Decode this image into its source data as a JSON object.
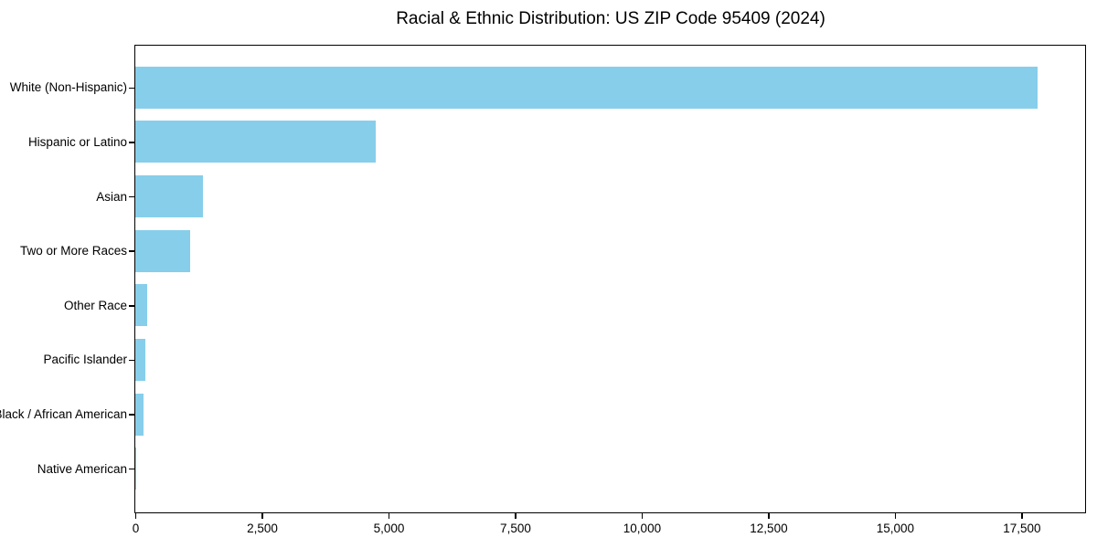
{
  "chart_data": {
    "type": "bar",
    "orientation": "horizontal",
    "title": "Racial & Ethnic Distribution: US ZIP Code 95409 (2024)",
    "categories": [
      "White (Non-Hispanic)",
      "Hispanic or Latino",
      "Asian",
      "Two or More Races",
      "Other Race",
      "Pacific Islander",
      "Black / African American",
      "Native American"
    ],
    "values": [
      17820,
      4750,
      1340,
      1085,
      240,
      190,
      165,
      25
    ],
    "xlabel": "",
    "ylabel": "",
    "xlim": [
      0,
      18720
    ],
    "xticks": [
      0,
      2500,
      5000,
      7500,
      10000,
      12500,
      15000,
      17500
    ],
    "xtick_labels": [
      "0",
      "2,500",
      "5,000",
      "7,500",
      "10,000",
      "12,500",
      "15,000",
      "17,500"
    ],
    "bar_color": "#87CEEB",
    "axis_color": "#000000",
    "text_color": "#000000",
    "background_color": "#FFFFFF",
    "grid": false,
    "legend": false
  }
}
